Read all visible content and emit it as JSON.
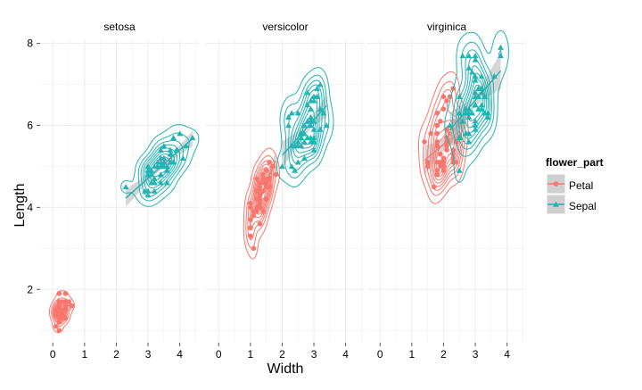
{
  "chart_data": {
    "type": "scatter",
    "xlabel": "Width",
    "ylabel": "Length",
    "facets": [
      "setosa",
      "versicolor",
      "virginica"
    ],
    "xlim": [
      -0.4,
      4.6
    ],
    "ylim": [
      0.7,
      8.1
    ],
    "xticks": [
      "0",
      "1",
      "2",
      "3",
      "4"
    ],
    "yticks": [
      "2",
      "4",
      "6",
      "8"
    ],
    "grid": true,
    "legend": {
      "title": "flower_part",
      "position": "right",
      "entries": [
        "Petal",
        "Sepal"
      ]
    },
    "colors": {
      "Petal": "#f8766d",
      "Sepal": "#22b3b3",
      "band": "#bbbbbb",
      "panel": "#ffffff",
      "grid": "#ececec"
    },
    "series": [
      {
        "name": "Petal",
        "facet": "setosa",
        "points": [
          [
            0.2,
            1.4
          ],
          [
            0.2,
            1.4
          ],
          [
            0.2,
            1.3
          ],
          [
            0.2,
            1.5
          ],
          [
            0.2,
            1.4
          ],
          [
            0.4,
            1.7
          ],
          [
            0.3,
            1.4
          ],
          [
            0.2,
            1.5
          ],
          [
            0.2,
            1.4
          ],
          [
            0.1,
            1.5
          ],
          [
            0.2,
            1.5
          ],
          [
            0.2,
            1.6
          ],
          [
            0.1,
            1.4
          ],
          [
            0.1,
            1.1
          ],
          [
            0.2,
            1.2
          ],
          [
            0.4,
            1.5
          ],
          [
            0.4,
            1.3
          ],
          [
            0.3,
            1.4
          ],
          [
            0.3,
            1.7
          ],
          [
            0.3,
            1.5
          ],
          [
            0.2,
            1.7
          ],
          [
            0.4,
            1.5
          ],
          [
            0.2,
            1.0
          ],
          [
            0.5,
            1.7
          ],
          [
            0.2,
            1.9
          ],
          [
            0.2,
            1.6
          ],
          [
            0.4,
            1.6
          ],
          [
            0.2,
            1.5
          ],
          [
            0.2,
            1.4
          ],
          [
            0.2,
            1.6
          ],
          [
            0.2,
            1.6
          ],
          [
            0.4,
            1.5
          ],
          [
            0.1,
            1.5
          ],
          [
            0.2,
            1.4
          ],
          [
            0.2,
            1.5
          ],
          [
            0.2,
            1.2
          ],
          [
            0.2,
            1.3
          ],
          [
            0.1,
            1.4
          ],
          [
            0.2,
            1.3
          ],
          [
            0.2,
            1.5
          ],
          [
            0.3,
            1.3
          ],
          [
            0.3,
            1.3
          ],
          [
            0.2,
            1.3
          ],
          [
            0.6,
            1.6
          ],
          [
            0.4,
            1.9
          ],
          [
            0.3,
            1.4
          ],
          [
            0.2,
            1.6
          ],
          [
            0.2,
            1.4
          ],
          [
            0.2,
            1.5
          ],
          [
            0.2,
            1.4
          ]
        ]
      },
      {
        "name": "Sepal",
        "facet": "setosa",
        "points": [
          [
            3.5,
            5.1
          ],
          [
            3.0,
            4.9
          ],
          [
            3.2,
            4.7
          ],
          [
            3.1,
            4.6
          ],
          [
            3.6,
            5.0
          ],
          [
            3.9,
            5.4
          ],
          [
            3.4,
            4.6
          ],
          [
            3.4,
            5.0
          ],
          [
            2.9,
            4.4
          ],
          [
            3.1,
            4.9
          ],
          [
            3.7,
            5.4
          ],
          [
            3.4,
            4.8
          ],
          [
            3.0,
            4.8
          ],
          [
            3.0,
            4.3
          ],
          [
            4.0,
            5.8
          ],
          [
            4.4,
            5.7
          ],
          [
            3.9,
            5.4
          ],
          [
            3.5,
            5.1
          ],
          [
            3.8,
            5.7
          ],
          [
            3.8,
            5.1
          ],
          [
            3.4,
            5.4
          ],
          [
            3.7,
            5.1
          ],
          [
            3.6,
            4.6
          ],
          [
            3.3,
            5.1
          ],
          [
            3.4,
            4.8
          ],
          [
            3.0,
            5.0
          ],
          [
            3.4,
            5.0
          ],
          [
            3.5,
            5.2
          ],
          [
            3.4,
            5.2
          ],
          [
            3.2,
            4.7
          ],
          [
            3.1,
            4.8
          ],
          [
            3.4,
            5.4
          ],
          [
            4.1,
            5.2
          ],
          [
            4.2,
            5.5
          ],
          [
            3.1,
            4.9
          ],
          [
            3.2,
            5.0
          ],
          [
            3.5,
            5.5
          ],
          [
            3.6,
            4.9
          ],
          [
            3.0,
            4.4
          ],
          [
            3.4,
            5.1
          ],
          [
            3.5,
            5.0
          ],
          [
            2.3,
            4.5
          ],
          [
            3.2,
            4.4
          ],
          [
            3.5,
            5.0
          ],
          [
            3.8,
            5.1
          ],
          [
            3.0,
            4.8
          ],
          [
            3.8,
            5.1
          ],
          [
            3.2,
            4.6
          ],
          [
            3.7,
            5.3
          ],
          [
            3.3,
            5.0
          ]
        ]
      },
      {
        "name": "Petal",
        "facet": "versicolor",
        "points": [
          [
            1.4,
            4.7
          ],
          [
            1.5,
            4.5
          ],
          [
            1.5,
            4.9
          ],
          [
            1.3,
            4.0
          ],
          [
            1.5,
            4.6
          ],
          [
            1.3,
            4.5
          ],
          [
            1.6,
            4.7
          ],
          [
            1.0,
            3.3
          ],
          [
            1.3,
            4.6
          ],
          [
            1.4,
            3.9
          ],
          [
            1.0,
            3.5
          ],
          [
            1.5,
            4.2
          ],
          [
            1.0,
            4.0
          ],
          [
            1.4,
            4.7
          ],
          [
            1.3,
            3.6
          ],
          [
            1.4,
            4.4
          ],
          [
            1.5,
            4.5
          ],
          [
            1.0,
            4.1
          ],
          [
            1.5,
            4.5
          ],
          [
            1.1,
            3.9
          ],
          [
            1.8,
            4.8
          ],
          [
            1.3,
            4.0
          ],
          [
            1.5,
            4.9
          ],
          [
            1.2,
            4.7
          ],
          [
            1.3,
            4.3
          ],
          [
            1.4,
            4.4
          ],
          [
            1.4,
            4.8
          ],
          [
            1.7,
            5.0
          ],
          [
            1.5,
            4.5
          ],
          [
            1.0,
            3.5
          ],
          [
            1.1,
            3.8
          ],
          [
            1.0,
            3.7
          ],
          [
            1.2,
            3.9
          ],
          [
            1.6,
            5.1
          ],
          [
            1.5,
            4.5
          ],
          [
            1.6,
            4.5
          ],
          [
            1.5,
            4.7
          ],
          [
            1.3,
            4.4
          ],
          [
            1.3,
            4.1
          ],
          [
            1.3,
            4.0
          ],
          [
            1.2,
            4.4
          ],
          [
            1.4,
            4.6
          ],
          [
            1.2,
            4.0
          ],
          [
            1.0,
            3.3
          ],
          [
            1.3,
            4.2
          ],
          [
            1.2,
            4.2
          ],
          [
            1.3,
            4.2
          ],
          [
            1.3,
            4.3
          ],
          [
            1.1,
            3.0
          ],
          [
            1.3,
            4.1
          ]
        ]
      },
      {
        "name": "Sepal",
        "facet": "versicolor",
        "points": [
          [
            3.2,
            7.0
          ],
          [
            3.2,
            6.4
          ],
          [
            3.1,
            6.9
          ],
          [
            2.3,
            5.5
          ],
          [
            2.8,
            6.5
          ],
          [
            2.8,
            5.7
          ],
          [
            3.3,
            6.3
          ],
          [
            2.4,
            4.9
          ],
          [
            2.9,
            6.6
          ],
          [
            2.7,
            5.2
          ],
          [
            2.0,
            5.0
          ],
          [
            3.0,
            5.9
          ],
          [
            2.2,
            6.0
          ],
          [
            2.9,
            6.1
          ],
          [
            2.9,
            5.6
          ],
          [
            3.1,
            6.7
          ],
          [
            3.0,
            5.6
          ],
          [
            2.7,
            5.8
          ],
          [
            2.2,
            6.2
          ],
          [
            2.5,
            5.6
          ],
          [
            3.2,
            5.9
          ],
          [
            2.8,
            6.1
          ],
          [
            2.5,
            6.3
          ],
          [
            2.8,
            6.1
          ],
          [
            2.9,
            6.4
          ],
          [
            3.0,
            6.6
          ],
          [
            2.8,
            6.8
          ],
          [
            3.0,
            6.7
          ],
          [
            2.9,
            6.0
          ],
          [
            2.6,
            5.7
          ],
          [
            2.4,
            5.5
          ],
          [
            2.4,
            5.5
          ],
          [
            2.7,
            5.8
          ],
          [
            2.7,
            6.0
          ],
          [
            3.0,
            5.4
          ],
          [
            3.4,
            6.0
          ],
          [
            3.1,
            6.7
          ],
          [
            2.3,
            6.3
          ],
          [
            3.0,
            5.6
          ],
          [
            2.5,
            5.5
          ],
          [
            2.6,
            5.5
          ],
          [
            3.0,
            6.1
          ],
          [
            2.6,
            5.8
          ],
          [
            2.3,
            5.0
          ],
          [
            2.7,
            5.6
          ],
          [
            3.0,
            5.7
          ],
          [
            2.9,
            5.7
          ],
          [
            2.9,
            6.2
          ],
          [
            2.5,
            5.1
          ],
          [
            2.8,
            5.7
          ]
        ]
      },
      {
        "name": "Petal",
        "facet": "virginica",
        "points": [
          [
            2.5,
            6.0
          ],
          [
            1.9,
            5.1
          ],
          [
            2.1,
            5.9
          ],
          [
            1.8,
            5.6
          ],
          [
            2.2,
            5.8
          ],
          [
            2.1,
            6.6
          ],
          [
            1.7,
            4.5
          ],
          [
            1.8,
            6.3
          ],
          [
            1.8,
            5.8
          ],
          [
            2.5,
            6.1
          ],
          [
            2.0,
            5.1
          ],
          [
            1.9,
            5.3
          ],
          [
            2.1,
            5.5
          ],
          [
            2.0,
            5.0
          ],
          [
            2.4,
            5.1
          ],
          [
            2.3,
            5.3
          ],
          [
            1.8,
            5.5
          ],
          [
            2.2,
            6.7
          ],
          [
            2.3,
            6.9
          ],
          [
            1.5,
            5.0
          ],
          [
            2.3,
            5.7
          ],
          [
            2.0,
            4.9
          ],
          [
            2.0,
            6.7
          ],
          [
            1.8,
            4.9
          ],
          [
            2.1,
            5.7
          ],
          [
            1.8,
            6.0
          ],
          [
            1.8,
            4.8
          ],
          [
            1.8,
            4.9
          ],
          [
            2.1,
            5.6
          ],
          [
            1.6,
            5.8
          ],
          [
            1.9,
            6.1
          ],
          [
            2.0,
            6.4
          ],
          [
            2.2,
            5.6
          ],
          [
            1.5,
            5.1
          ],
          [
            1.4,
            5.6
          ],
          [
            2.3,
            6.1
          ],
          [
            2.4,
            5.6
          ],
          [
            1.8,
            5.5
          ],
          [
            1.8,
            4.8
          ],
          [
            2.1,
            5.4
          ],
          [
            2.4,
            5.6
          ],
          [
            2.3,
            5.1
          ],
          [
            1.9,
            5.1
          ],
          [
            2.3,
            5.9
          ],
          [
            2.5,
            5.7
          ],
          [
            2.3,
            5.2
          ],
          [
            1.9,
            5.0
          ],
          [
            2.0,
            5.2
          ],
          [
            2.3,
            5.4
          ],
          [
            1.8,
            5.1
          ]
        ]
      },
      {
        "name": "Sepal",
        "facet": "virginica",
        "points": [
          [
            3.3,
            6.3
          ],
          [
            2.7,
            5.8
          ],
          [
            3.0,
            7.1
          ],
          [
            2.9,
            6.3
          ],
          [
            3.0,
            6.5
          ],
          [
            3.0,
            7.6
          ],
          [
            2.5,
            4.9
          ],
          [
            2.9,
            7.3
          ],
          [
            2.5,
            6.7
          ],
          [
            3.6,
            7.2
          ],
          [
            3.2,
            6.5
          ],
          [
            2.7,
            6.4
          ],
          [
            3.0,
            6.8
          ],
          [
            2.5,
            5.7
          ],
          [
            2.8,
            5.8
          ],
          [
            3.2,
            6.4
          ],
          [
            3.0,
            6.5
          ],
          [
            3.8,
            7.7
          ],
          [
            2.6,
            7.7
          ],
          [
            2.2,
            6.0
          ],
          [
            3.2,
            6.9
          ],
          [
            2.8,
            5.6
          ],
          [
            2.8,
            7.7
          ],
          [
            2.7,
            6.3
          ],
          [
            3.3,
            6.7
          ],
          [
            3.2,
            7.2
          ],
          [
            2.8,
            6.2
          ],
          [
            3.0,
            6.1
          ],
          [
            2.8,
            6.4
          ],
          [
            3.0,
            7.2
          ],
          [
            2.8,
            7.4
          ],
          [
            3.8,
            7.9
          ],
          [
            2.8,
            6.4
          ],
          [
            2.8,
            6.3
          ],
          [
            2.6,
            6.1
          ],
          [
            3.0,
            7.7
          ],
          [
            3.4,
            6.3
          ],
          [
            3.1,
            6.4
          ],
          [
            3.0,
            6.0
          ],
          [
            3.1,
            6.9
          ],
          [
            3.1,
            6.7
          ],
          [
            3.1,
            6.9
          ],
          [
            2.7,
            5.8
          ],
          [
            3.2,
            6.8
          ],
          [
            3.3,
            6.7
          ],
          [
            3.0,
            6.7
          ],
          [
            2.5,
            6.3
          ],
          [
            3.0,
            6.5
          ],
          [
            3.4,
            6.2
          ],
          [
            3.0,
            5.9
          ]
        ]
      }
    ]
  }
}
